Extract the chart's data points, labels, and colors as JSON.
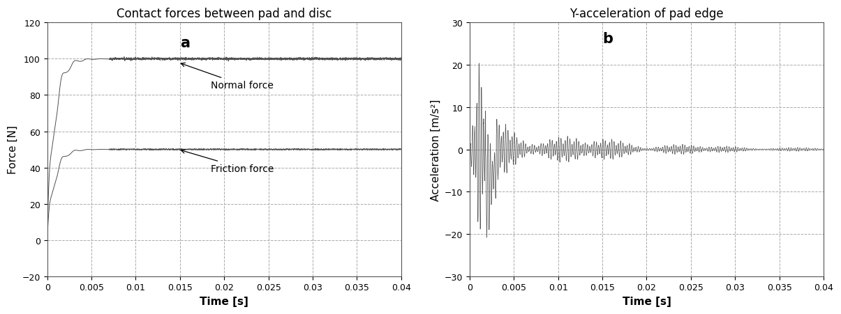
{
  "plot_a": {
    "title": "Contact forces between pad and disc",
    "xlabel": "Time [s]",
    "ylabel": "Force [N]",
    "xlim": [
      0,
      0.04
    ],
    "ylim": [
      -20,
      120
    ],
    "yticks": [
      -20,
      0,
      20,
      40,
      60,
      80,
      100,
      120
    ],
    "xticks": [
      0,
      0.005,
      0.01,
      0.015,
      0.02,
      0.025,
      0.03,
      0.035,
      0.04
    ],
    "xtick_labels": [
      "0",
      "0.005",
      "0.01",
      "0.015",
      "0.02",
      "0.025",
      "0.03",
      "0.035",
      "0.04"
    ],
    "annotation_normal": "Normal force",
    "annotation_friction": "Friction force"
  },
  "plot_b": {
    "title": "Y-acceleration of pad edge",
    "xlabel": "Time [s]",
    "ylabel": "Acceleration [m/s²]",
    "xlim": [
      0,
      0.04
    ],
    "ylim": [
      -30,
      30
    ],
    "yticks": [
      -30,
      -20,
      -10,
      0,
      10,
      20,
      30
    ],
    "xticks": [
      0,
      0.005,
      0.01,
      0.015,
      0.02,
      0.025,
      0.03,
      0.035,
      0.04
    ],
    "xtick_labels": [
      "0",
      "0.005",
      "0.01",
      "0.015",
      "0.02",
      "0.025",
      "0.03",
      "0.035",
      "0.04"
    ]
  },
  "line_color": "#505050",
  "grid_color": "#aaaaaa",
  "background_color": "#ffffff",
  "label_fontsize": 11,
  "title_fontsize": 12,
  "tick_fontsize": 9,
  "annotation_fontsize": 10
}
